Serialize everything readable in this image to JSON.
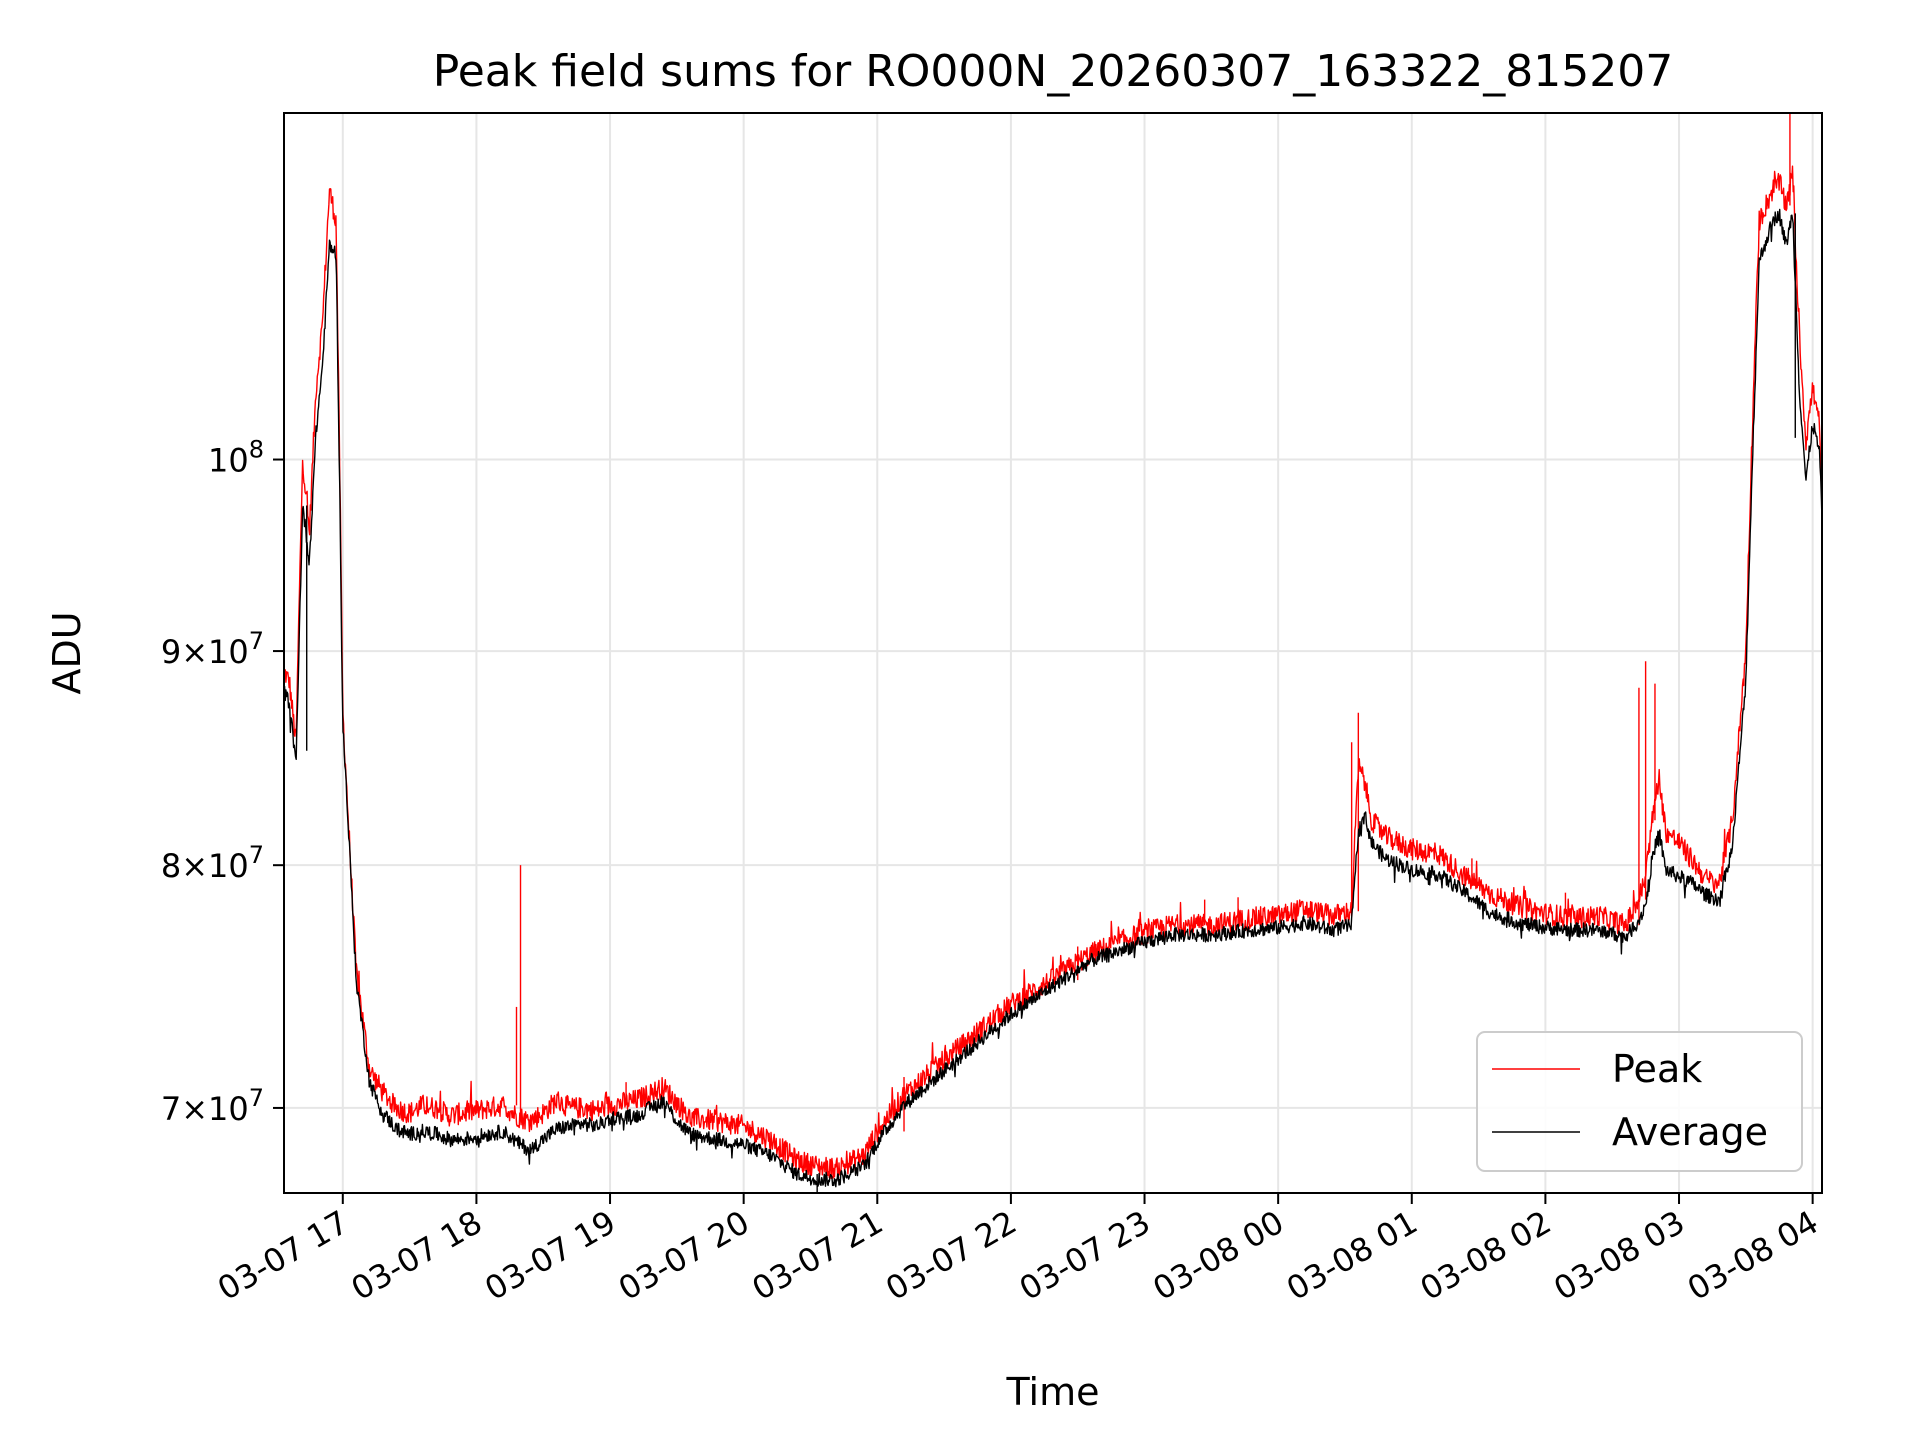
{
  "chart_data": {
    "type": "line",
    "title": "Peak field sums for RO000N_20260307_163322_815207",
    "xlabel": "Time",
    "ylabel": "ADU",
    "xlim_hours": [
      16.56,
      28.07
    ],
    "ylim": [
      66800000,
      121000000
    ],
    "yscale": "log",
    "grid": true,
    "legend_position": "lower-right",
    "x_ticks": [
      {
        "label": "03-07 17",
        "hour": 17
      },
      {
        "label": "03-07 18",
        "hour": 18
      },
      {
        "label": "03-07 19",
        "hour": 19
      },
      {
        "label": "03-07 20",
        "hour": 20
      },
      {
        "label": "03-07 21",
        "hour": 21
      },
      {
        "label": "03-07 22",
        "hour": 22
      },
      {
        "label": "03-07 23",
        "hour": 23
      },
      {
        "label": "03-08 00",
        "hour": 24
      },
      {
        "label": "03-08 01",
        "hour": 25
      },
      {
        "label": "03-08 02",
        "hour": 26
      },
      {
        "label": "03-08 03",
        "hour": 27
      },
      {
        "label": "03-08 04",
        "hour": 28
      }
    ],
    "y_ticks": [
      {
        "mantissa": "7",
        "exponent": "7",
        "value": 70000000
      },
      {
        "mantissa": "8",
        "exponent": "7",
        "value": 80000000
      },
      {
        "mantissa": "9",
        "exponent": "7",
        "value": 90000000
      },
      {
        "mantissa": "",
        "exponent": "8",
        "value": 100000000
      }
    ],
    "series": [
      {
        "name": "Peak",
        "color": "#ff0000",
        "x_hours": [
          16.56,
          16.6,
          16.65,
          16.7,
          16.75,
          16.8,
          16.85,
          16.9,
          16.95,
          17.0,
          17.05,
          17.1,
          17.2,
          17.3,
          17.4,
          17.5,
          17.6,
          17.7,
          17.8,
          17.9,
          18.0,
          18.1,
          18.2,
          18.3,
          18.4,
          18.5,
          18.6,
          18.7,
          18.8,
          18.9,
          19.0,
          19.2,
          19.4,
          19.5,
          19.6,
          19.8,
          20.0,
          20.2,
          20.4,
          20.55,
          20.7,
          20.9,
          21.0,
          21.2,
          21.4,
          21.6,
          21.8,
          22.0,
          22.3,
          22.6,
          22.9,
          23.2,
          23.5,
          23.8,
          24.0,
          24.2,
          24.4,
          24.55,
          24.6,
          24.65,
          24.7,
          24.8,
          25.0,
          25.2,
          25.4,
          25.6,
          25.8,
          26.0,
          26.2,
          26.4,
          26.6,
          26.7,
          26.75,
          26.8,
          26.85,
          26.9,
          27.0,
          27.1,
          27.2,
          27.3,
          27.4,
          27.5,
          27.6,
          27.7,
          27.75,
          27.8,
          27.85,
          27.9,
          27.95,
          28.0,
          28.05,
          28.07
        ],
        "values": [
          89000000,
          88500000,
          85500000,
          100000000,
          96000000,
          104000000,
          108000000,
          116000000,
          114000000,
          87000000,
          81000000,
          75500000,
          71500000,
          70600000,
          70000000,
          69800000,
          70100000,
          70000000,
          69700000,
          69800000,
          69900000,
          70000000,
          70100000,
          69700000,
          69500000,
          69800000,
          70300000,
          70000000,
          70000000,
          69900000,
          70100000,
          70300000,
          70800000,
          70200000,
          69600000,
          69500000,
          69300000,
          68800000,
          68000000,
          67800000,
          67700000,
          68200000,
          69100000,
          70500000,
          71400000,
          72300000,
          73200000,
          74100000,
          75100000,
          76200000,
          76900000,
          77400000,
          77400000,
          77700000,
          77800000,
          78100000,
          77800000,
          78000000,
          84500000,
          83700000,
          82000000,
          81300000,
          80700000,
          80500000,
          79500000,
          78700000,
          78200000,
          77900000,
          77700000,
          77800000,
          77400000,
          78500000,
          79500000,
          82000000,
          84000000,
          81500000,
          81000000,
          80200000,
          79400000,
          79200000,
          82000000,
          90000000,
          114000000,
          116000000,
          116500000,
          115000000,
          117000000,
          107000000,
          101000000,
          104000000,
          102000000,
          97500000
        ]
      },
      {
        "name": "Average",
        "color": "#000000",
        "x_hours": [
          16.56,
          16.6,
          16.65,
          16.7,
          16.75,
          16.8,
          16.85,
          16.9,
          16.95,
          17.0,
          17.05,
          17.1,
          17.2,
          17.3,
          17.4,
          17.5,
          17.6,
          17.7,
          17.8,
          17.9,
          18.0,
          18.1,
          18.2,
          18.3,
          18.4,
          18.5,
          18.6,
          18.7,
          18.8,
          18.9,
          19.0,
          19.2,
          19.4,
          19.5,
          19.6,
          19.8,
          20.0,
          20.2,
          20.4,
          20.55,
          20.7,
          20.9,
          21.0,
          21.2,
          21.4,
          21.6,
          21.8,
          22.0,
          22.3,
          22.6,
          22.9,
          23.2,
          23.5,
          23.8,
          24.0,
          24.2,
          24.4,
          24.55,
          24.6,
          24.65,
          24.7,
          24.8,
          25.0,
          25.2,
          25.4,
          25.6,
          25.8,
          26.0,
          26.2,
          26.4,
          26.6,
          26.7,
          26.75,
          26.8,
          26.85,
          26.9,
          27.0,
          27.1,
          27.2,
          27.3,
          27.4,
          27.5,
          27.6,
          27.7,
          27.75,
          27.8,
          27.85,
          27.9,
          27.95,
          28.0,
          28.05,
          28.07
        ],
        "values": [
          88000000,
          87500000,
          84500000,
          97500000,
          94500000,
          101500000,
          105500000,
          112500000,
          112000000,
          86500000,
          80700000,
          75100000,
          71000000,
          69800000,
          69200000,
          69000000,
          69100000,
          69000000,
          68800000,
          68800000,
          68900000,
          69000000,
          69100000,
          68700000,
          68400000,
          68800000,
          69200000,
          69300000,
          69400000,
          69300000,
          69600000,
          69700000,
          70300000,
          69500000,
          69000000,
          68800000,
          68600000,
          68200000,
          67500000,
          67300000,
          67300000,
          67800000,
          68700000,
          70100000,
          71000000,
          71900000,
          72800000,
          73700000,
          74800000,
          75900000,
          76500000,
          77000000,
          77000000,
          77200000,
          77300000,
          77500000,
          77200000,
          77400000,
          81500000,
          82200000,
          81000000,
          80300000,
          79800000,
          79600000,
          78800000,
          77900000,
          77500000,
          77300000,
          77200000,
          77200000,
          76900000,
          77600000,
          78300000,
          80300000,
          81500000,
          79800000,
          79500000,
          79200000,
          78700000,
          78500000,
          80800000,
          88500000,
          111500000,
          114000000,
          114500000,
          112500000,
          114500000,
          104000000,
          98800000,
          102000000,
          100500000,
          97000000
        ]
      }
    ],
    "spikes": {
      "Peak": [
        {
          "hour": 18.33,
          "value": 80000000
        },
        {
          "hour": 18.3,
          "value": 74000000
        },
        {
          "hour": 24.6,
          "value": 87000000
        },
        {
          "hour": 24.55,
          "value": 85600000
        },
        {
          "hour": 26.75,
          "value": 89500000
        },
        {
          "hour": 26.7,
          "value": 88200000
        },
        {
          "hour": 26.82,
          "value": 88400000
        },
        {
          "hour": 19.12,
          "value": 71000000
        },
        {
          "hour": 21.2,
          "value": 71200000
        },
        {
          "hour": 22.1,
          "value": 75300000
        },
        {
          "hour": 22.5,
          "value": 76500000
        },
        {
          "hour": 23.45,
          "value": 78500000
        },
        {
          "hour": 23.7,
          "value": 78600000
        },
        {
          "hour": 25.45,
          "value": 80300000
        },
        {
          "hour": 26.15,
          "value": 78800000
        },
        {
          "hour": 27.83,
          "value": 121000000
        }
      ],
      "Average": [
        {
          "hour": 16.73,
          "value": 85200000
        },
        {
          "hour": 20.55,
          "value": 66700000
        },
        {
          "hour": 27.87,
          "value": 101200000
        }
      ]
    }
  }
}
